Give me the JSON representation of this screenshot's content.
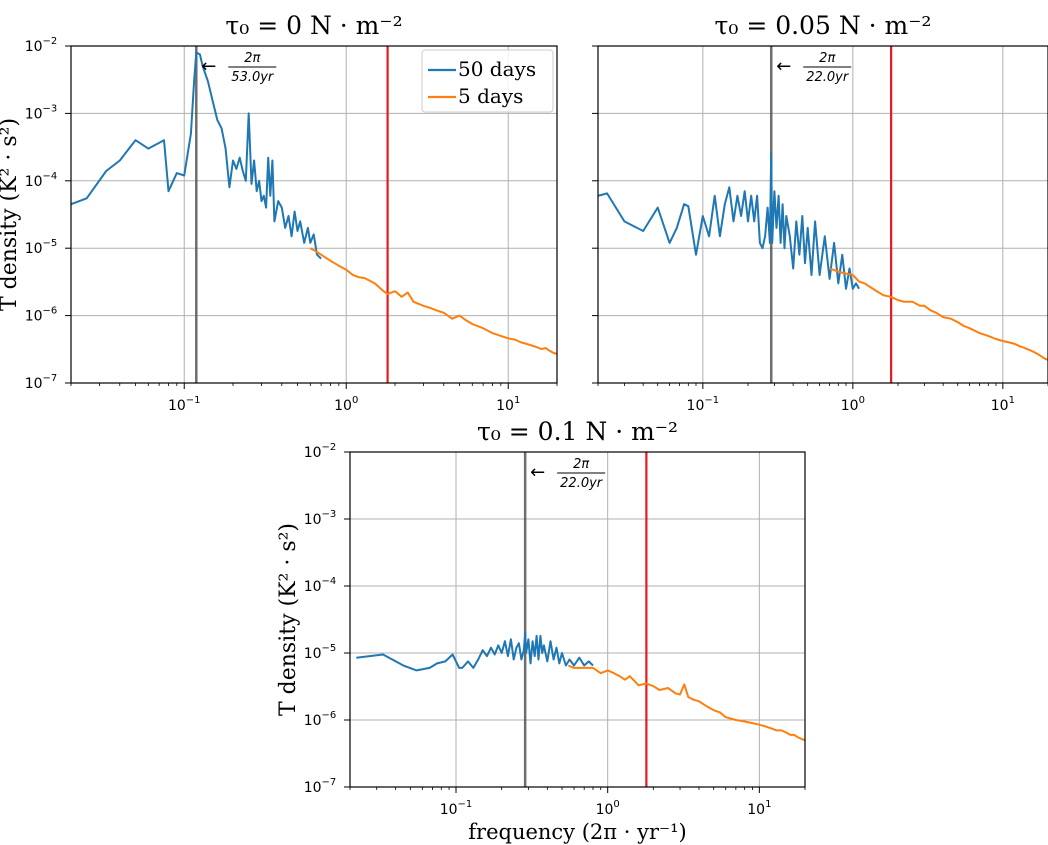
{
  "chart_data": [
    {
      "type": "line",
      "title": "τ₀ = 0 N · m⁻²",
      "xlabel": "",
      "ylabel": "T density (K² · s²)",
      "xscale": "log",
      "yscale": "log",
      "xlim": [
        0.02,
        20
      ],
      "ylim": [
        1e-07,
        0.01
      ],
      "grid": true,
      "legend": {
        "placement": "top-right",
        "entries": [
          "50 days",
          "5 days"
        ]
      },
      "x_tick_labels": [
        "10⁻¹",
        "10⁰",
        "10¹"
      ],
      "y_tick_labels": [
        "10⁻⁷",
        "10⁻⁶",
        "10⁻⁵",
        "10⁻⁴",
        "10⁻³",
        "10⁻²"
      ],
      "vlines": [
        {
          "x": 0.1187,
          "color": "#555555"
        },
        {
          "x": 1.8,
          "color": "#e41a1c"
        }
      ],
      "annotation": {
        "numerator": "2π",
        "denominator": "53.0yr",
        "arrow": "←"
      },
      "series": [
        {
          "name": "50 days",
          "color": "#1f77b4",
          "x": [
            0.02,
            0.025,
            0.033,
            0.04,
            0.05,
            0.06,
            0.075,
            0.08,
            0.09,
            0.1,
            0.11,
            0.115,
            0.1187,
            0.125,
            0.13,
            0.14,
            0.15,
            0.16,
            0.17,
            0.18,
            0.19,
            0.2,
            0.21,
            0.22,
            0.23,
            0.24,
            0.25,
            0.26,
            0.27,
            0.28,
            0.29,
            0.3,
            0.31,
            0.32,
            0.33,
            0.34,
            0.35,
            0.36,
            0.38,
            0.4,
            0.42,
            0.44,
            0.46,
            0.48,
            0.5,
            0.52,
            0.55,
            0.58,
            0.6,
            0.63,
            0.66,
            0.7
          ],
          "y": [
            4.5e-05,
            5.5e-05,
            0.00014,
            0.0002,
            0.0004,
            0.0003,
            0.0004,
            7e-05,
            0.00013,
            0.00012,
            0.0005,
            0.003,
            0.008,
            0.0075,
            0.005,
            0.003,
            0.0015,
            0.0008,
            0.0006,
            0.0003,
            8e-05,
            0.0002,
            0.00015,
            0.00022,
            0.00014,
            0.0001,
            0.001,
            9e-05,
            0.0002,
            7e-05,
            0.0001,
            5e-05,
            6e-05,
            4e-05,
            0.00022,
            6e-05,
            0.0002,
            2.5e-05,
            5e-05,
            4e-05,
            2e-05,
            3e-05,
            1.5e-05,
            3.5e-05,
            1.8e-05,
            2.5e-05,
            1.2e-05,
            2e-05,
            1.2e-05,
            1.6e-05,
            8e-06,
            7e-06
          ]
        },
        {
          "name": "5 days",
          "color": "#ff7f0e",
          "x": [
            0.6,
            0.65,
            0.7,
            0.8,
            0.9,
            1.0,
            1.1,
            1.2,
            1.3,
            1.5,
            1.7,
            1.8,
            2.0,
            2.2,
            2.4,
            2.6,
            3.0,
            3.3,
            3.6,
            4.0,
            4.5,
            5.0,
            5.5,
            6.0,
            7.0,
            8.0,
            9.0,
            10.0,
            11.0,
            12.0,
            13.0,
            14.0,
            15.0,
            16.0,
            17.0,
            18.0,
            19.0,
            20.0
          ],
          "y": [
            1e-05,
            9e-06,
            8e-06,
            6.5e-06,
            5.5e-06,
            4.8e-06,
            4e-06,
            3.7e-06,
            3.6e-06,
            3e-06,
            2.3e-06,
            2.1e-06,
            2.3e-06,
            1.9e-06,
            2.2e-06,
            1.6e-06,
            1.4e-06,
            1.3e-06,
            1.2e-06,
            1.1e-06,
            9e-07,
            1e-06,
            8.5e-07,
            7.5e-07,
            6.5e-07,
            5.5e-07,
            5e-07,
            4.6e-07,
            4.4e-07,
            4e-07,
            3.8e-07,
            3.6e-07,
            3.4e-07,
            3.2e-07,
            3.3e-07,
            3e-07,
            2.8e-07,
            2.7e-07
          ]
        }
      ]
    },
    {
      "type": "line",
      "title": "τ₀ = 0.05 N · m⁻²",
      "xlabel": "",
      "ylabel": "",
      "xscale": "log",
      "yscale": "log",
      "xlim": [
        0.02,
        20
      ],
      "ylim": [
        1e-07,
        0.01
      ],
      "grid": true,
      "x_tick_labels": [
        "10⁻¹",
        "10⁰",
        "10¹"
      ],
      "vlines": [
        {
          "x": 0.2857,
          "color": "#555555"
        },
        {
          "x": 1.8,
          "color": "#e41a1c"
        }
      ],
      "annotation": {
        "numerator": "2π",
        "denominator": "22.0yr",
        "arrow": "←"
      },
      "series": [
        {
          "name": "50 days",
          "color": "#1f77b4",
          "x": [
            0.02,
            0.023,
            0.03,
            0.04,
            0.05,
            0.06,
            0.067,
            0.075,
            0.08,
            0.09,
            0.1,
            0.11,
            0.12,
            0.13,
            0.14,
            0.15,
            0.16,
            0.17,
            0.18,
            0.19,
            0.2,
            0.21,
            0.22,
            0.23,
            0.24,
            0.25,
            0.26,
            0.27,
            0.28,
            0.2857,
            0.29,
            0.3,
            0.31,
            0.32,
            0.33,
            0.34,
            0.35,
            0.36,
            0.38,
            0.4,
            0.42,
            0.44,
            0.46,
            0.48,
            0.5,
            0.53,
            0.56,
            0.6,
            0.65,
            0.7,
            0.75,
            0.8,
            0.85,
            0.9,
            0.95,
            1.0,
            1.05,
            1.1
          ],
          "y": [
            6e-05,
            6.5e-05,
            2.5e-05,
            1.8e-05,
            4e-05,
            1.2e-05,
            2e-05,
            4.5e-05,
            4.2e-05,
            8e-06,
            3e-05,
            1.5e-05,
            6e-05,
            1.5e-05,
            4.5e-05,
            8e-05,
            2.5e-05,
            6e-05,
            3e-05,
            7e-05,
            2.5e-05,
            6e-05,
            2.5e-05,
            6e-05,
            1.2e-05,
            1e-05,
            1.5e-05,
            4e-05,
            1.2e-05,
            0.00026,
            1.2e-05,
            7e-05,
            2e-05,
            6e-05,
            1.2e-05,
            4.5e-05,
            1e-05,
            3e-05,
            1.5e-05,
            5e-06,
            2.5e-05,
            8e-06,
            3e-05,
            6e-06,
            2e-05,
            4e-06,
            2.5e-05,
            4e-06,
            1.5e-05,
            3.5e-06,
            1.2e-05,
            3e-06,
            8e-06,
            2.5e-06,
            5e-06,
            2.5e-06,
            3e-06,
            2.5e-06
          ]
        },
        {
          "name": "5 days",
          "color": "#ff7f0e",
          "x": [
            0.7,
            0.8,
            0.9,
            1.0,
            1.1,
            1.2,
            1.4,
            1.6,
            1.8,
            2.0,
            2.2,
            2.5,
            2.8,
            3.0,
            3.3,
            3.6,
            4.0,
            4.5,
            5.0,
            5.5,
            6.0,
            7.0,
            8.0,
            9.0,
            10.0,
            11.0,
            12.0,
            13.0,
            14.0,
            15.0,
            16.0,
            17.0,
            18.0,
            19.0,
            20.0
          ],
          "y": [
            5e-06,
            4.5e-06,
            4.2e-06,
            4e-06,
            3.2e-06,
            3e-06,
            2.4e-06,
            2e-06,
            1.9e-06,
            1.7e-06,
            1.6e-06,
            1.6e-06,
            1.4e-06,
            1.4e-06,
            1.2e-06,
            1.1e-06,
            9.5e-07,
            9e-07,
            8e-07,
            7e-07,
            6.5e-07,
            5.5e-07,
            5e-07,
            4.5e-07,
            4.2e-07,
            4e-07,
            3.8e-07,
            3.5e-07,
            3.3e-07,
            3.1e-07,
            2.9e-07,
            2.7e-07,
            2.5e-07,
            2.3e-07,
            2.2e-07
          ]
        }
      ]
    },
    {
      "type": "line",
      "title": "τ₀ = 0.1 N · m⁻²",
      "xlabel": "frequency (2π · yr⁻¹)",
      "ylabel": "T density (K² · s²)",
      "xscale": "log",
      "yscale": "log",
      "xlim": [
        0.02,
        20
      ],
      "ylim": [
        1e-07,
        0.01
      ],
      "grid": true,
      "x_tick_labels": [
        "10⁻¹",
        "10⁰",
        "10¹"
      ],
      "y_tick_labels": [
        "10⁻⁷",
        "10⁻⁶",
        "10⁻⁵",
        "10⁻⁴",
        "10⁻³",
        "10⁻²"
      ],
      "vlines": [
        {
          "x": 0.2857,
          "color": "#555555"
        },
        {
          "x": 1.8,
          "color": "#e41a1c"
        }
      ],
      "annotation": {
        "numerator": "2π",
        "denominator": "22.0yr",
        "arrow": "←"
      },
      "series": [
        {
          "name": "50 days",
          "color": "#1f77b4",
          "x": [
            0.022,
            0.033,
            0.045,
            0.055,
            0.067,
            0.075,
            0.085,
            0.095,
            0.105,
            0.11,
            0.12,
            0.13,
            0.14,
            0.15,
            0.16,
            0.17,
            0.18,
            0.19,
            0.2,
            0.21,
            0.22,
            0.23,
            0.24,
            0.25,
            0.26,
            0.27,
            0.28,
            0.2857,
            0.29,
            0.3,
            0.31,
            0.32,
            0.33,
            0.34,
            0.35,
            0.36,
            0.37,
            0.38,
            0.4,
            0.42,
            0.44,
            0.46,
            0.48,
            0.5,
            0.53,
            0.56,
            0.6,
            0.65,
            0.7,
            0.75,
            0.8
          ],
          "y": [
            8.5e-06,
            9.5e-06,
            6.5e-06,
            5.5e-06,
            6e-06,
            7e-06,
            7.5e-06,
            9.5e-06,
            6e-06,
            6e-06,
            7.5e-06,
            6e-06,
            8e-06,
            1.1e-05,
            9e-06,
            1.2e-05,
            9.5e-06,
            1.3e-05,
            1e-05,
            1.5e-05,
            9e-06,
            1.6e-05,
            8e-06,
            1.2e-05,
            1.4e-05,
            8e-06,
            1.1e-05,
            2e-05,
            1e-05,
            1.6e-05,
            7e-06,
            1.5e-05,
            9e-06,
            1.8e-05,
            8e-06,
            1.8e-05,
            1e-05,
            1.3e-05,
            7.5e-06,
            1.5e-05,
            8e-06,
            1.2e-05,
            7e-06,
            1e-05,
            6.5e-06,
            8e-06,
            6.5e-06,
            8.5e-06,
            6.5e-06,
            7.5e-06,
            6.5e-06
          ]
        },
        {
          "name": "5 days",
          "color": "#ff7f0e",
          "x": [
            0.55,
            0.6,
            0.7,
            0.8,
            0.9,
            1.0,
            1.1,
            1.2,
            1.3,
            1.4,
            1.6,
            1.8,
            2.0,
            2.2,
            2.5,
            2.8,
            3.0,
            3.2,
            3.4,
            3.7,
            4.0,
            4.5,
            5.0,
            5.5,
            6.0,
            7.0,
            8.0,
            9.0,
            10.0,
            11.0,
            12.0,
            13.0,
            14.0,
            15.0,
            16.0,
            17.0,
            18.0,
            19.0,
            20.0
          ],
          "y": [
            6.5e-06,
            6e-06,
            6e-06,
            6e-06,
            5e-06,
            5.5e-06,
            5e-06,
            4.5e-06,
            4e-06,
            4.5e-06,
            3.3e-06,
            3.5e-06,
            3.2e-06,
            2.8e-06,
            3e-06,
            2.5e-06,
            2.4e-06,
            3.4e-06,
            2.2e-06,
            2e-06,
            1.9e-06,
            1.6e-06,
            1.4e-06,
            1.3e-06,
            1.1e-06,
            1e-06,
            9.5e-07,
            9e-07,
            8.5e-07,
            8e-07,
            7.5e-07,
            7e-07,
            7e-07,
            6.5e-07,
            6e-07,
            6e-07,
            5.5e-07,
            5.2e-07,
            5e-07
          ]
        }
      ]
    }
  ]
}
